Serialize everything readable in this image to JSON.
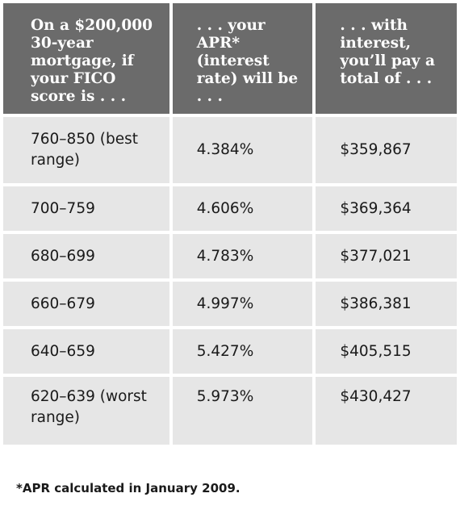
{
  "headers": [
    "On a $200,000 30-year mortgage, if your FICO score is . . .",
    ". . . your APR* (interest rate) will be . . .",
    ". . . with interest, you’ll pay a total of . . ."
  ],
  "rows": [
    {
      "score": "760–850 (best range)",
      "apr": "4.384%",
      "total": "$359,867"
    },
    {
      "score": "700–759",
      "apr": "4.606%",
      "total": "$369,364"
    },
    {
      "score": "680–699",
      "apr": "4.783%",
      "total": "$377,021"
    },
    {
      "score": "660–679",
      "apr": "4.997%",
      "total": "$386,381"
    },
    {
      "score": "640–659",
      "apr": "5.427%",
      "total": "$405,515"
    },
    {
      "score": "620–639 (worst range)",
      "apr": "5.973%",
      "total": "$430,427"
    }
  ],
  "footnote": "*APR calculated in January 2009.",
  "colors": {
    "header_bg": "#6b6b6b",
    "header_text": "#ffffff",
    "cell_bg": "#e6e6e6",
    "cell_text": "#1a1a1a"
  }
}
